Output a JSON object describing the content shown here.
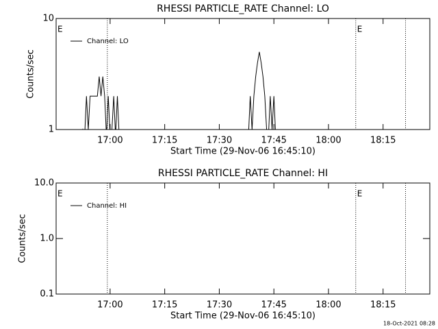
{
  "chart_data": [
    {
      "type": "line",
      "title": "RHESSI PARTICLE_RATE Channel: LO",
      "xlabel": "Start Time (29-Nov-06 16:45:10)",
      "ylabel": "Counts/sec",
      "x": [
        "16:45:10",
        "16:52:00",
        "16:52:30",
        "16:53:00",
        "16:53:30",
        "16:54:00",
        "16:54:30",
        "16:55:00",
        "16:55:30",
        "16:56:00",
        "16:56:30",
        "16:57:00",
        "16:57:30",
        "16:58:00",
        "16:58:30",
        "16:59:00",
        "16:59:30",
        "17:00:00",
        "17:00:30",
        "17:01:00",
        "17:01:30",
        "17:02:00",
        "17:02:30",
        "17:38:00",
        "17:38:30",
        "17:39:00",
        "17:39:30",
        "17:40:00",
        "17:40:30",
        "17:41:00",
        "17:41:30",
        "17:42:00",
        "17:42:30",
        "17:43:00",
        "17:43:30",
        "17:44:00",
        "17:44:30",
        "17:45:00",
        "17:45:30",
        "18:27:50"
      ],
      "series": [
        {
          "name": "Channel: LO",
          "color": "#000000",
          "values": [
            0,
            0,
            1,
            0,
            2,
            1,
            2,
            2,
            2,
            2,
            2,
            3,
            2,
            3,
            2,
            0,
            2,
            0,
            1,
            2,
            0,
            2,
            0,
            0,
            2,
            1,
            2,
            3,
            4,
            5,
            4,
            3,
            2,
            1,
            0,
            2,
            1,
            2,
            0,
            0
          ]
        }
      ],
      "xlim": [
        "16:45:10",
        "18:27:50"
      ],
      "xticks": [
        "17:00",
        "17:15",
        "17:30",
        "17:45",
        "18:00",
        "18:15"
      ],
      "ylim": [
        1,
        10
      ],
      "yticks": [
        1,
        10
      ],
      "log_y": true,
      "legend": "top-left",
      "markers": [
        "16:59:14",
        "18:07:29",
        "18:21:10"
      ],
      "annotations": [
        {
          "text": "E",
          "x": "16:45:10"
        },
        {
          "text": "E",
          "x": "18:07:29"
        }
      ]
    },
    {
      "type": "line",
      "title": "RHESSI PARTICLE_RATE Channel: HI",
      "xlabel": "Start Time (29-Nov-06 16:45:10)",
      "ylabel": "Counts/sec",
      "x": [
        "16:45:10",
        "18:27:50"
      ],
      "series": [
        {
          "name": "Channel: HI",
          "color": "#000000",
          "values": [
            0,
            0
          ]
        }
      ],
      "xlim": [
        "16:45:10",
        "18:27:50"
      ],
      "xticks": [
        "17:00",
        "17:15",
        "17:30",
        "17:45",
        "18:00",
        "18:15"
      ],
      "ylim": [
        0.1,
        10
      ],
      "yticks": [
        0.1,
        {
          "value": 1,
          "label": "1.0"
        },
        {
          "value": 10,
          "label": "10.0"
        }
      ],
      "log_y": true,
      "legend": "top-left",
      "markers": [
        "16:59:14",
        "18:07:29",
        "18:21:10"
      ],
      "annotations": [
        {
          "text": "E",
          "x": "16:45:10"
        },
        {
          "text": "E",
          "x": "18:07:29"
        }
      ]
    }
  ],
  "footer": "18-Oct-2021 08:28"
}
